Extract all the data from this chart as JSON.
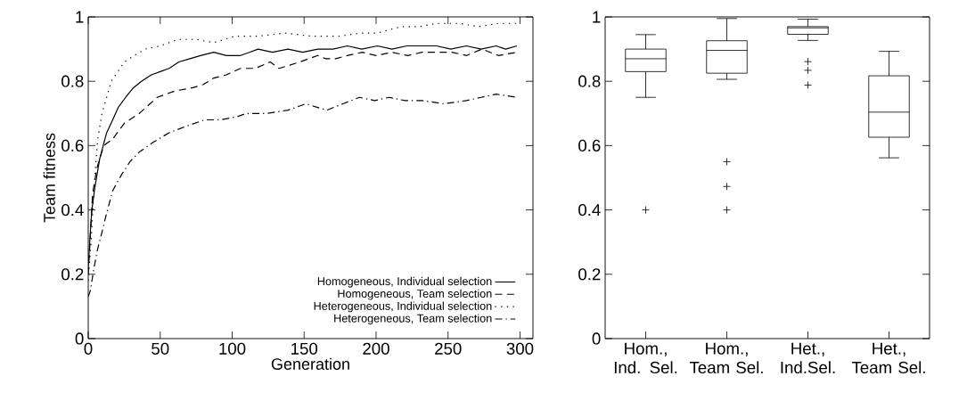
{
  "chart_data": [
    {
      "type": "line",
      "xlabel": "Generation",
      "ylabel": "Team fitness",
      "xlim": [
        0,
        309
      ],
      "ylim": [
        0,
        1
      ],
      "xticks": [
        0,
        50,
        100,
        150,
        200,
        250,
        300
      ],
      "yticks": [
        0,
        0.2,
        0.4,
        0.6,
        0.8,
        1
      ],
      "legend": "bottom right",
      "grid": false,
      "marker": "none",
      "series": [
        {
          "name": "Homogeneous, Individual selection",
          "color": "#000000",
          "line_style": "solid",
          "x": [
            0,
            1,
            2.5,
            4.6,
            8,
            12.8,
            17,
            21,
            26,
            31.4,
            37,
            43.8,
            50,
            56.2,
            63,
            70.7,
            78,
            87.2,
            96,
            105.8,
            112,
            118,
            128,
            138.8,
            149,
            159.5,
            170,
            180,
            190,
            201,
            211,
            221.4,
            232,
            242,
            252,
            262.7,
            273,
            283.4,
            290,
            297.8
          ],
          "values": [
            0.22,
            0.3,
            0.4,
            0.47,
            0.56,
            0.64,
            0.68,
            0.72,
            0.75,
            0.78,
            0.8,
            0.82,
            0.83,
            0.84,
            0.86,
            0.87,
            0.88,
            0.89,
            0.88,
            0.88,
            0.89,
            0.9,
            0.89,
            0.9,
            0.89,
            0.9,
            0.9,
            0.91,
            0.9,
            0.91,
            0.9,
            0.91,
            0.91,
            0.91,
            0.9,
            0.91,
            0.9,
            0.91,
            0.9,
            0.91
          ]
        },
        {
          "name": "Homogeneous, Team selection",
          "color": "#000000",
          "line_style": "dashed",
          "x": [
            0,
            1.5,
            3,
            6,
            10.8,
            16.9,
            25.2,
            35.5,
            47.9,
            60.3,
            72.7,
            80,
            87.2,
            96,
            105.8,
            116,
            126.4,
            132.6,
            140,
            147,
            159.5,
            165,
            171.9,
            180,
            190.5,
            200,
            211,
            222,
            232,
            242,
            252.8,
            263,
            273.5,
            285,
            297.8
          ],
          "values": [
            0.2,
            0.32,
            0.45,
            0.53,
            0.6,
            0.62,
            0.67,
            0.7,
            0.75,
            0.77,
            0.78,
            0.79,
            0.81,
            0.82,
            0.84,
            0.84,
            0.86,
            0.84,
            0.85,
            0.86,
            0.88,
            0.87,
            0.87,
            0.88,
            0.89,
            0.88,
            0.89,
            0.88,
            0.89,
            0.89,
            0.89,
            0.88,
            0.9,
            0.88,
            0.89
          ]
        },
        {
          "name": "Heterogeneous, Individual selection",
          "color": "#000000",
          "line_style": "dotted",
          "x": [
            0,
            2,
            4,
            6.6,
            9.5,
            12.8,
            16,
            19,
            25.2,
            32,
            39.6,
            50,
            62.4,
            75,
            87.2,
            101.6,
            118,
            136.7,
            155,
            173.9,
            190,
            201,
            217.3,
            230,
            242,
            258,
            271,
            285,
            297.8
          ],
          "values": [
            0.18,
            0.3,
            0.47,
            0.62,
            0.7,
            0.75,
            0.8,
            0.82,
            0.86,
            0.88,
            0.9,
            0.91,
            0.93,
            0.93,
            0.92,
            0.94,
            0.94,
            0.95,
            0.94,
            0.94,
            0.95,
            0.95,
            0.97,
            0.97,
            0.98,
            0.98,
            0.97,
            0.98,
            0.98
          ]
        },
        {
          "name": "Heterogeneous, Team selection",
          "color": "#000000",
          "line_style": "dashdot",
          "x": [
            0,
            1.5,
            4,
            6.6,
            9.5,
            12.8,
            17,
            23.2,
            29,
            35.5,
            45,
            56.2,
            68,
            80.9,
            92,
            103.6,
            109.8,
            124,
            138.8,
            151.2,
            165.7,
            177,
            188.4,
            199,
            209,
            220,
            232,
            247,
            262.7,
            273,
            283.4,
            297.8
          ],
          "values": [
            0.13,
            0.15,
            0.22,
            0.28,
            0.33,
            0.39,
            0.46,
            0.51,
            0.55,
            0.58,
            0.61,
            0.64,
            0.66,
            0.68,
            0.68,
            0.69,
            0.7,
            0.7,
            0.71,
            0.73,
            0.71,
            0.73,
            0.75,
            0.74,
            0.75,
            0.74,
            0.74,
            0.73,
            0.74,
            0.75,
            0.76,
            0.75
          ]
        }
      ]
    },
    {
      "type": "box",
      "categories": [
        "Hom., Ind. Sel.",
        "Hom., Team Sel.",
        "Het., Ind.Sel.",
        "Het., Team Sel."
      ],
      "ylim": [
        0,
        1
      ],
      "yticks": [
        0,
        0.2,
        0.4,
        0.6,
        0.8,
        1
      ],
      "color": "#000000",
      "boxes": [
        {
          "low": 0.75,
          "q1": 0.83,
          "median": 0.87,
          "q3": 0.9,
          "high": 0.945,
          "outliers": [
            0.4
          ]
        },
        {
          "low": 0.806,
          "q1": 0.825,
          "median": 0.896,
          "q3": 0.926,
          "high": 0.995,
          "outliers": [
            0.55,
            0.473,
            0.4
          ]
        },
        {
          "low": 0.927,
          "q1": 0.946,
          "median": 0.966,
          "q3": 0.97,
          "high": 0.993,
          "outliers": [
            0.861,
            0.834,
            0.788
          ]
        },
        {
          "low": 0.562,
          "q1": 0.626,
          "median": 0.704,
          "q3": 0.817,
          "high": 0.893
        }
      ]
    }
  ]
}
